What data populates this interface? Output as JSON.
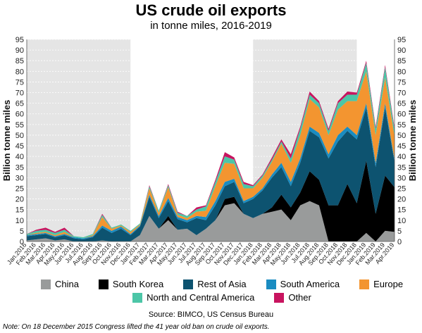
{
  "colors": {
    "China": "#999b9b",
    "South Korea": "#000000",
    "Rest of Asia": "#0d5370",
    "South America": "#1a8cc1",
    "Europe": "#f39530",
    "North and Central America": "#4cc6a7",
    "Other": "#c8145f",
    "shade": "#e5e5e5"
  },
  "chart_data": {
    "type": "area",
    "title": "US crude oil exports",
    "subtitle": "in tonne miles, 2016-2019",
    "ylabel_left": "Billion tonne miles",
    "ylabel_right": "Billion tonne miles",
    "ylim": [
      0,
      95
    ],
    "yticks": [
      0,
      5,
      10,
      15,
      20,
      25,
      30,
      35,
      40,
      45,
      50,
      55,
      60,
      65,
      70,
      75,
      80,
      85,
      90,
      95
    ],
    "shaded_periods": [
      [
        "Jan 2016",
        "Dec 2016"
      ],
      [
        "Jan 2018",
        "Dec 2018"
      ]
    ],
    "x": [
      "Jan 2016",
      "Feb 2016",
      "Mar 2016",
      "Apr 2016",
      "May 2016",
      "Jun 2016",
      "Jul 2016",
      "Aug 2016",
      "Sep 2016",
      "Oct 2016",
      "Nov 2016",
      "Dec 2016",
      "Jan 2017",
      "Feb 2017",
      "Mar 2017",
      "Apr 2017",
      "May 2017",
      "Jun 2017",
      "Jul 2017",
      "Aug 2017",
      "Sep 2017",
      "Oct 2017",
      "Nov 2017",
      "Dec 2017",
      "Jan 2018",
      "Feb 2018",
      "Mar 2018",
      "Apr 2018",
      "May 2018",
      "Jun 2018",
      "Jul 2018",
      "Aug 2018",
      "Sep 2018",
      "Oct 2018",
      "Nov 2018",
      "Dec 2018",
      "Jan 2019",
      "Feb 2019",
      "Mar 2019",
      "Apr 2019"
    ],
    "series": [
      {
        "name": "China",
        "values": [
          0.5,
          1,
          1.5,
          0.5,
          1,
          0,
          0,
          0,
          0.5,
          0,
          0,
          0,
          3,
          12,
          6,
          10,
          5.5,
          6,
          3,
          6,
          10,
          17,
          18,
          13,
          11,
          13,
          14,
          15,
          10,
          17,
          19,
          17,
          0,
          0,
          0,
          0,
          4,
          0,
          5,
          4.5
        ]
      },
      {
        "name": "South Korea",
        "values": [
          0,
          0,
          0,
          0,
          0,
          0,
          0,
          0,
          0,
          0,
          0,
          0,
          0,
          0,
          0,
          2,
          0,
          0,
          0,
          0,
          0,
          3,
          3,
          0,
          0,
          0,
          2,
          7,
          6,
          6,
          14,
          12,
          17,
          17,
          27,
          18,
          34,
          13,
          26,
          21
        ]
      },
      {
        "name": "Rest of Asia",
        "values": [
          2,
          2,
          2,
          1.5,
          2,
          1.5,
          1,
          2,
          6,
          4,
          6,
          3,
          4,
          9,
          5,
          7,
          5,
          3,
          8,
          4,
          7,
          6,
          7,
          5,
          9,
          11,
          14,
          13,
          10,
          14,
          19,
          20,
          22,
          30,
          25,
          30,
          25,
          22,
          32,
          12
        ]
      },
      {
        "name": "South America",
        "values": [
          0.5,
          0.5,
          0.5,
          0.5,
          0.5,
          0.5,
          0.5,
          0.5,
          1,
          1,
          1,
          0.5,
          0.5,
          1,
          1,
          1.5,
          1,
          1,
          1,
          1.5,
          2,
          2,
          1.5,
          1,
          1,
          1,
          1.5,
          2,
          2,
          2,
          2,
          2,
          2,
          3,
          2,
          2,
          2,
          2,
          2,
          1
        ]
      },
      {
        "name": "Europe",
        "values": [
          0,
          0.5,
          0.5,
          0.5,
          1,
          0,
          0,
          0.5,
          4,
          1,
          0.5,
          1,
          0.5,
          3,
          1.5,
          5,
          1,
          1,
          2,
          3,
          7,
          9,
          7,
          6,
          4,
          5,
          6,
          9,
          9,
          11,
          13,
          12,
          9,
          12,
          12,
          16,
          15,
          13,
          12,
          11
        ]
      },
      {
        "name": "North and Central America",
        "values": [
          0.5,
          1,
          1,
          1,
          1,
          0.5,
          0.5,
          0.5,
          1,
          0.5,
          0.5,
          0.5,
          0.5,
          1,
          1,
          1,
          1,
          1,
          1,
          2,
          2,
          3,
          2,
          2,
          1,
          1,
          1,
          1,
          2,
          3,
          2,
          2,
          2,
          3,
          3,
          3,
          4,
          3,
          5,
          3
        ]
      },
      {
        "name": "Other",
        "values": [
          0,
          0.5,
          1,
          0.5,
          1,
          0,
          0,
          0,
          0.5,
          0,
          0,
          0,
          0,
          0.5,
          0,
          0.5,
          0.5,
          0,
          1,
          0.5,
          1,
          2,
          1,
          1,
          0.5,
          0.5,
          1,
          1,
          2,
          1,
          1.5,
          1,
          1,
          1,
          1.5,
          1,
          1,
          1,
          1,
          1
        ]
      }
    ],
    "x_tick_labels": [
      "Jan.2016",
      "Feb.2016",
      "Mar.2016",
      "Apr.2016",
      "May.2016",
      "Jun.2016",
      "Jul.2016",
      "Aug.2016",
      "Sep.2016",
      "Oct.2016",
      "Nov.2016",
      "Dec.2016",
      "Jan.2017",
      "Feb.2017",
      "Mar.2017",
      "Apr.2017",
      "May.2017",
      "Jun.2017",
      "Jul.2017",
      "Aug.2017",
      "Sep.2017",
      "Oct.2017",
      "Nov.2017",
      "Dec.2017",
      "Jan.2018",
      "Feb.2018",
      "Mar.2018",
      "Apr.2018",
      "May.2018",
      "Jun.2018",
      "Jul.2018",
      "Aug.2018",
      "Sep.2018",
      "Oct.2018",
      "Nov.2018",
      "Dec.2018",
      "Jan.2019",
      "Feb.2019",
      "Mar.2019",
      "Apr.2019"
    ],
    "legend": [
      "China",
      "South Korea",
      "Rest of Asia",
      "South America",
      "Europe",
      "North and Central America",
      "Other"
    ]
  },
  "footer": {
    "source": "Source: BIMCO, US Census Bureau",
    "note": "Note: On 18 December 2015 Congress lifted the 41 year old ban on crude oil exports."
  }
}
